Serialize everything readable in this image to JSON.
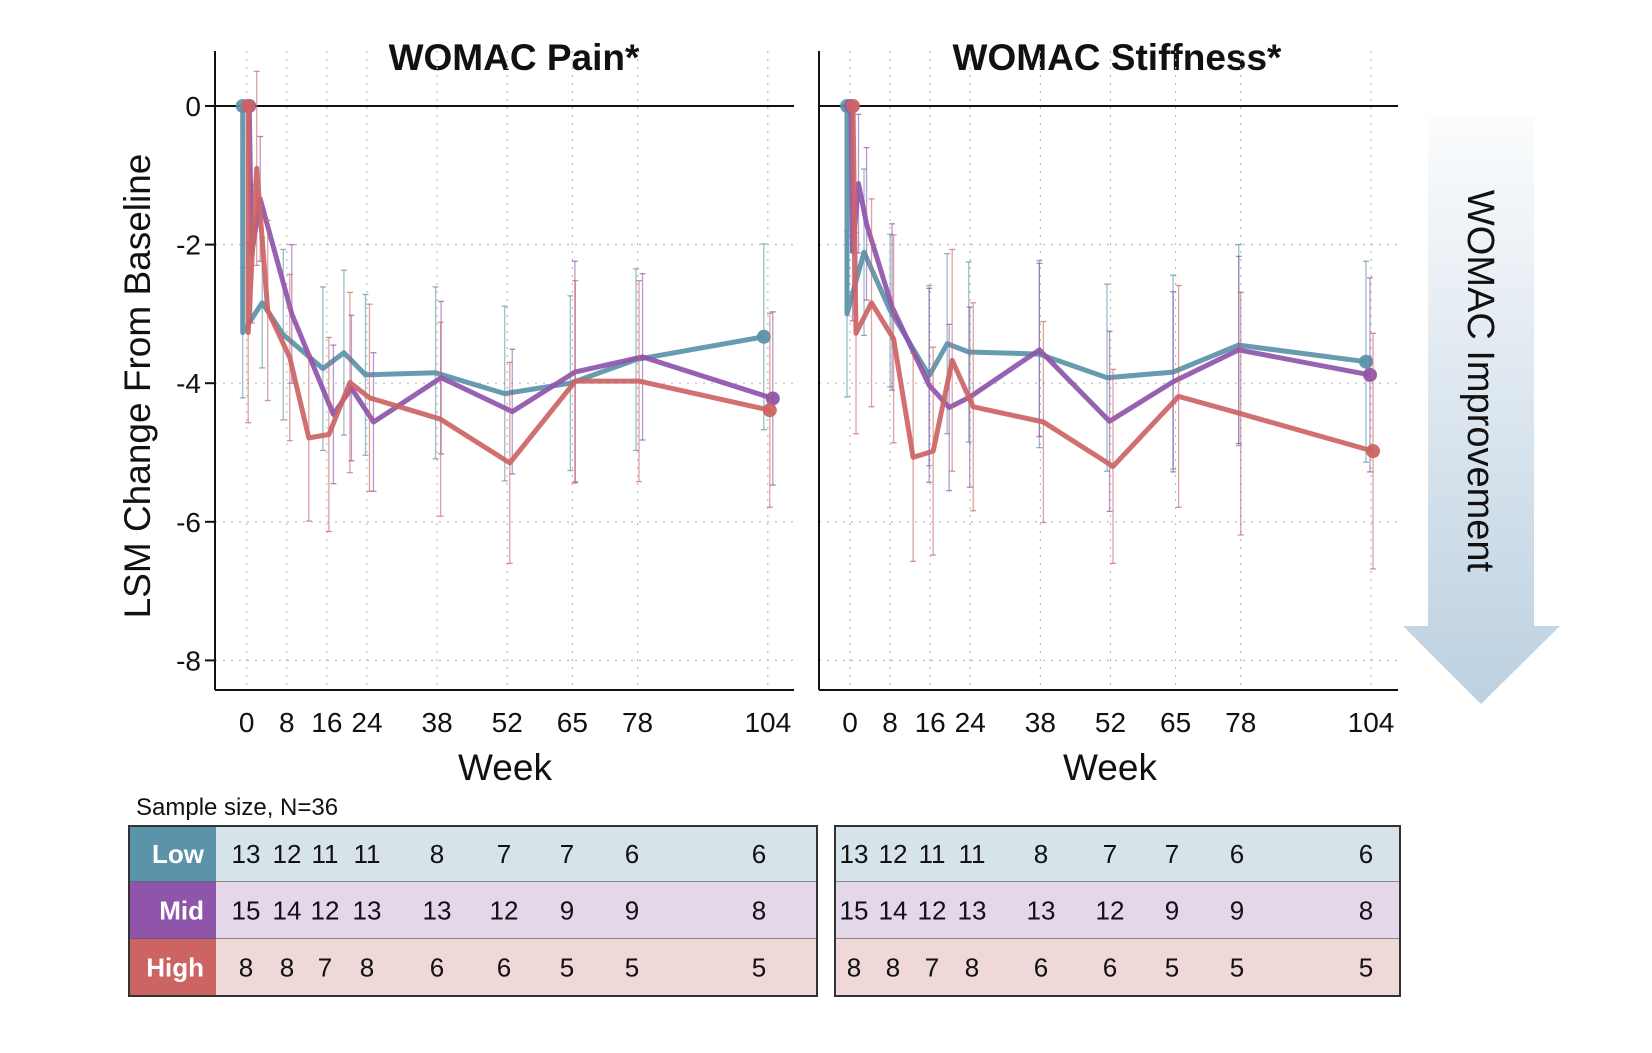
{
  "arrow_label": "WOMAC Improvement",
  "table": {
    "caption": "Sample size, N=36",
    "rows": [
      {
        "label": "Low",
        "color": "#5b93a8",
        "bg": "#d6e4ea",
        "pain": [
          "13",
          "12",
          "11",
          "11",
          "8",
          "7",
          "7",
          "6",
          "6"
        ],
        "stiffness": [
          "13",
          "12",
          "11",
          "11",
          "8",
          "7",
          "7",
          "6",
          "6"
        ]
      },
      {
        "label": "Mid",
        "color": "#8e55ab",
        "bg": "#e4d7ea",
        "pain": [
          "15",
          "14",
          "12",
          "13",
          "13",
          "12",
          "9",
          "9",
          "8"
        ],
        "stiffness": [
          "15",
          "14",
          "12",
          "13",
          "13",
          "12",
          "9",
          "9",
          "8"
        ]
      },
      {
        "label": "High",
        "color": "#cc6464",
        "bg": "#f0d8d8",
        "pain": [
          "8",
          "8",
          "7",
          "8",
          "6",
          "6",
          "5",
          "5",
          "5"
        ],
        "stiffness": [
          "8",
          "8",
          "7",
          "8",
          "6",
          "6",
          "5",
          "5",
          "5"
        ]
      }
    ]
  },
  "chart_data": [
    {
      "type": "line",
      "title": "WOMAC Pain*",
      "xlabel": "Week",
      "ylabel": "LSM Change From Baseline",
      "xticks": [
        0,
        8,
        16,
        24,
        38,
        52,
        65,
        78,
        104
      ],
      "yticks": [
        0,
        -2,
        -4,
        -6,
        -8
      ],
      "ylim": [
        -8.45,
        0.8
      ],
      "grid": true,
      "error_bars": true,
      "series": [
        {
          "group": "Low",
          "color": "#5b93a8",
          "x": [
            -0.8,
            -0.8,
            3.1,
            7.3,
            15.2,
            19.4,
            23.7,
            37.7,
            51.5,
            64.6,
            77.7,
            103.2
          ],
          "y": [
            0,
            -3.27,
            -2.84,
            -3.3,
            -3.79,
            -3.56,
            -3.88,
            -3.85,
            -4.15,
            -4.0,
            -3.66,
            -3.33
          ],
          "err": [
            0,
            0.94,
            0.94,
            1.23,
            1.18,
            1.19,
            1.16,
            1.24,
            1.26,
            1.26,
            1.31,
            1.34
          ]
        },
        {
          "group": "Mid",
          "color": "#8e55ab",
          "x": [
            0.5,
            1.0,
            2.7,
            9.0,
            17.3,
            20.9,
            25.3,
            38.8,
            53.0,
            65.5,
            79.0,
            105.0
          ],
          "y": [
            0,
            -2.13,
            -1.34,
            -3.0,
            -4.45,
            -4.07,
            -4.56,
            -3.92,
            -4.41,
            -3.84,
            -3.62,
            -4.22
          ],
          "err": [
            0,
            1.0,
            0.9,
            1.0,
            1.0,
            1.05,
            1.0,
            1.1,
            0.9,
            1.6,
            1.2,
            1.25
          ]
        },
        {
          "group": "High",
          "color": "#cc6464",
          "x": [
            0.3,
            0.3,
            2.0,
            4.2,
            8.6,
            12.4,
            16.4,
            20.6,
            24.5,
            38.7,
            52.5,
            65.6,
            78.3,
            104.4
          ],
          "y": [
            0,
            -3.27,
            -0.9,
            -2.95,
            -3.63,
            -4.79,
            -4.74,
            -3.99,
            -4.21,
            -4.52,
            -5.15,
            -3.97,
            -3.97,
            -4.39
          ],
          "err": [
            0,
            1.3,
            1.4,
            1.3,
            1.2,
            1.2,
            1.4,
            1.3,
            1.35,
            1.4,
            1.45,
            1.45,
            1.45,
            1.4
          ]
        }
      ]
    },
    {
      "type": "line",
      "title": "WOMAC Stiffness*",
      "xlabel": "Week",
      "xticks": [
        0,
        8,
        16,
        24,
        38,
        52,
        65,
        78,
        104
      ],
      "yticks": [
        0,
        -2,
        -4,
        -6,
        -8
      ],
      "ylim": [
        -8.45,
        0.8
      ],
      "grid": true,
      "error_bars": true,
      "series": [
        {
          "group": "Low",
          "color": "#5b93a8",
          "x": [
            -0.6,
            -0.6,
            2.8,
            8.0,
            15.8,
            19.4,
            23.7,
            37.8,
            51.3,
            64.5,
            77.6,
            103.0
          ],
          "y": [
            0,
            -3.0,
            -2.11,
            -2.95,
            -3.89,
            -3.43,
            -3.55,
            -3.58,
            -3.92,
            -3.84,
            -3.45,
            -3.69
          ],
          "err": [
            0,
            1.2,
            1.2,
            1.1,
            1.3,
            1.3,
            1.3,
            1.35,
            1.35,
            1.4,
            1.45,
            1.45
          ]
        },
        {
          "group": "Mid",
          "color": "#8e55ab",
          "x": [
            0.2,
            0.5,
            1.7,
            3.3,
            8.4,
            15.8,
            19.8,
            23.9,
            37.8,
            51.8,
            64.5,
            77.6,
            103.8
          ],
          "y": [
            0,
            -2.1,
            -1.12,
            -1.7,
            -2.9,
            -4.03,
            -4.35,
            -4.2,
            -3.52,
            -4.55,
            -3.98,
            -3.52,
            -3.88
          ],
          "err": [
            0,
            1.0,
            1.0,
            1.1,
            1.2,
            1.4,
            1.2,
            1.3,
            1.25,
            1.3,
            1.3,
            1.35,
            1.4
          ]
        },
        {
          "group": "High",
          "color": "#cc6464",
          "x": [
            0.6,
            1.2,
            4.3,
            8.7,
            12.6,
            16.6,
            20.4,
            24.6,
            38.6,
            52.5,
            65.6,
            78.0,
            104.4
          ],
          "y": [
            0,
            -3.28,
            -2.84,
            -3.36,
            -5.07,
            -4.98,
            -3.67,
            -4.34,
            -4.56,
            -5.2,
            -4.19,
            -4.44,
            -4.98
          ],
          "err": [
            0,
            1.45,
            1.5,
            1.5,
            1.5,
            1.5,
            1.6,
            1.5,
            1.45,
            1.4,
            1.6,
            1.75,
            1.7
          ]
        }
      ]
    }
  ]
}
